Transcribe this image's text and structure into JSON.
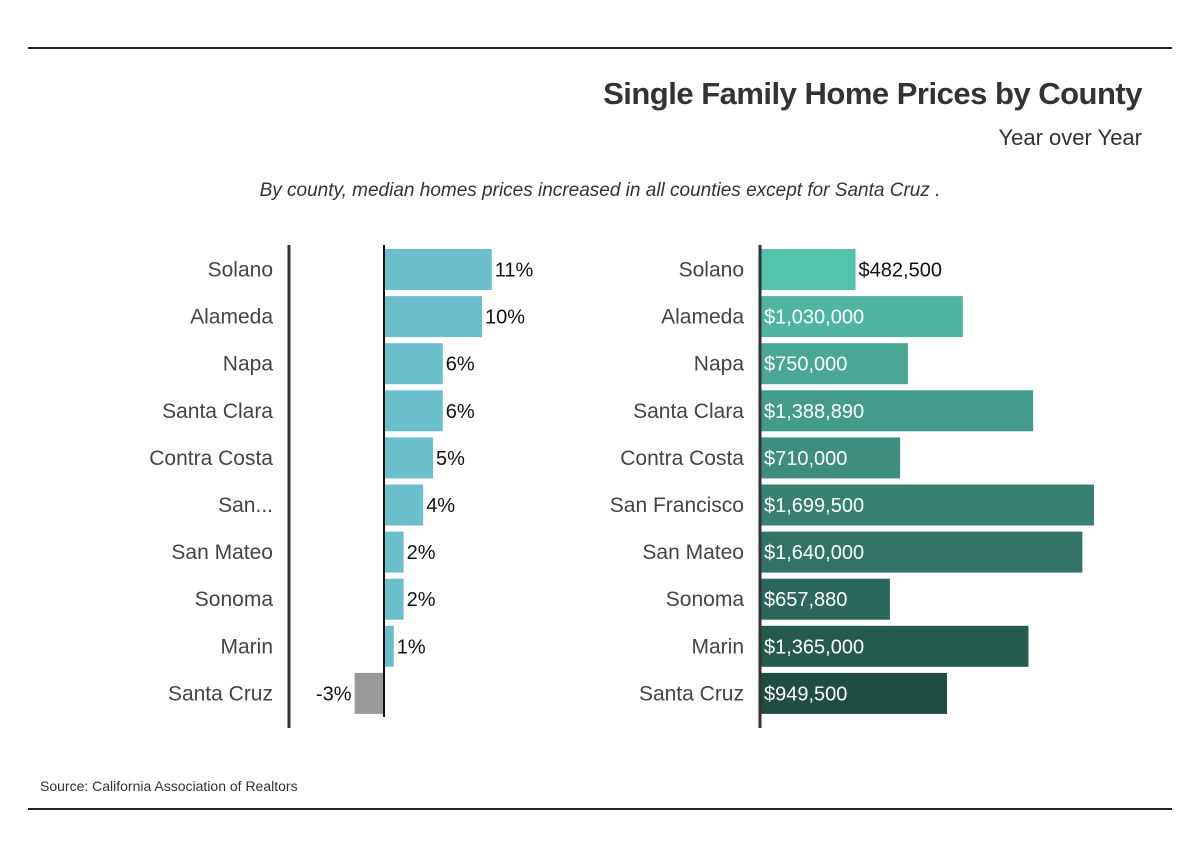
{
  "header": {
    "title": "Single Family Home Prices by County",
    "subtitle": "Year over Year",
    "note": "By county, median homes prices increased in all counties except for Santa Cruz ."
  },
  "footer": {
    "source": "Source:  California Association of Realtors"
  },
  "colors": {
    "change_positive": "#6bbfcc",
    "change_negative": "#999999",
    "price_gradient_start": "#55c2ac",
    "price_gradient_end": "#1f4d42",
    "axis": "#333333"
  },
  "chart_data": [
    {
      "type": "bar",
      "orientation": "horizontal",
      "title": "",
      "unit": "%",
      "categories": [
        "Solano",
        "Alameda",
        "Napa",
        "Santa Clara",
        "Contra Costa",
        "San...",
        "San Mateo",
        "Sonoma",
        "Marin",
        "Santa Cruz"
      ],
      "values": [
        11,
        10,
        6,
        6,
        5,
        4,
        2,
        2,
        1,
        -3
      ],
      "value_labels": [
        "11%",
        "10%",
        "6%",
        "6%",
        "5%",
        "4%",
        "2%",
        "2%",
        "1%",
        "-3%"
      ],
      "xlim": [
        -3,
        11
      ],
      "grid": false
    },
    {
      "type": "bar",
      "orientation": "horizontal",
      "title": "",
      "unit": "$",
      "categories": [
        "Solano",
        "Alameda",
        "Napa",
        "Santa Clara",
        "Contra Costa",
        "San Francisco",
        "San Mateo",
        "Sonoma",
        "Marin",
        "Santa Cruz"
      ],
      "values": [
        482500,
        1030000,
        750000,
        1388890,
        710000,
        1699500,
        1640000,
        657880,
        1365000,
        949500
      ],
      "value_labels": [
        "$482,500",
        "$1,030,000",
        "$750,000",
        "$1,388,890",
        "$710,000",
        "$1,699,500",
        "$1,640,000",
        "$657,880",
        "$1,365,000",
        "$949,500"
      ],
      "xlim": [
        0,
        1699500
      ],
      "grid": false
    }
  ]
}
